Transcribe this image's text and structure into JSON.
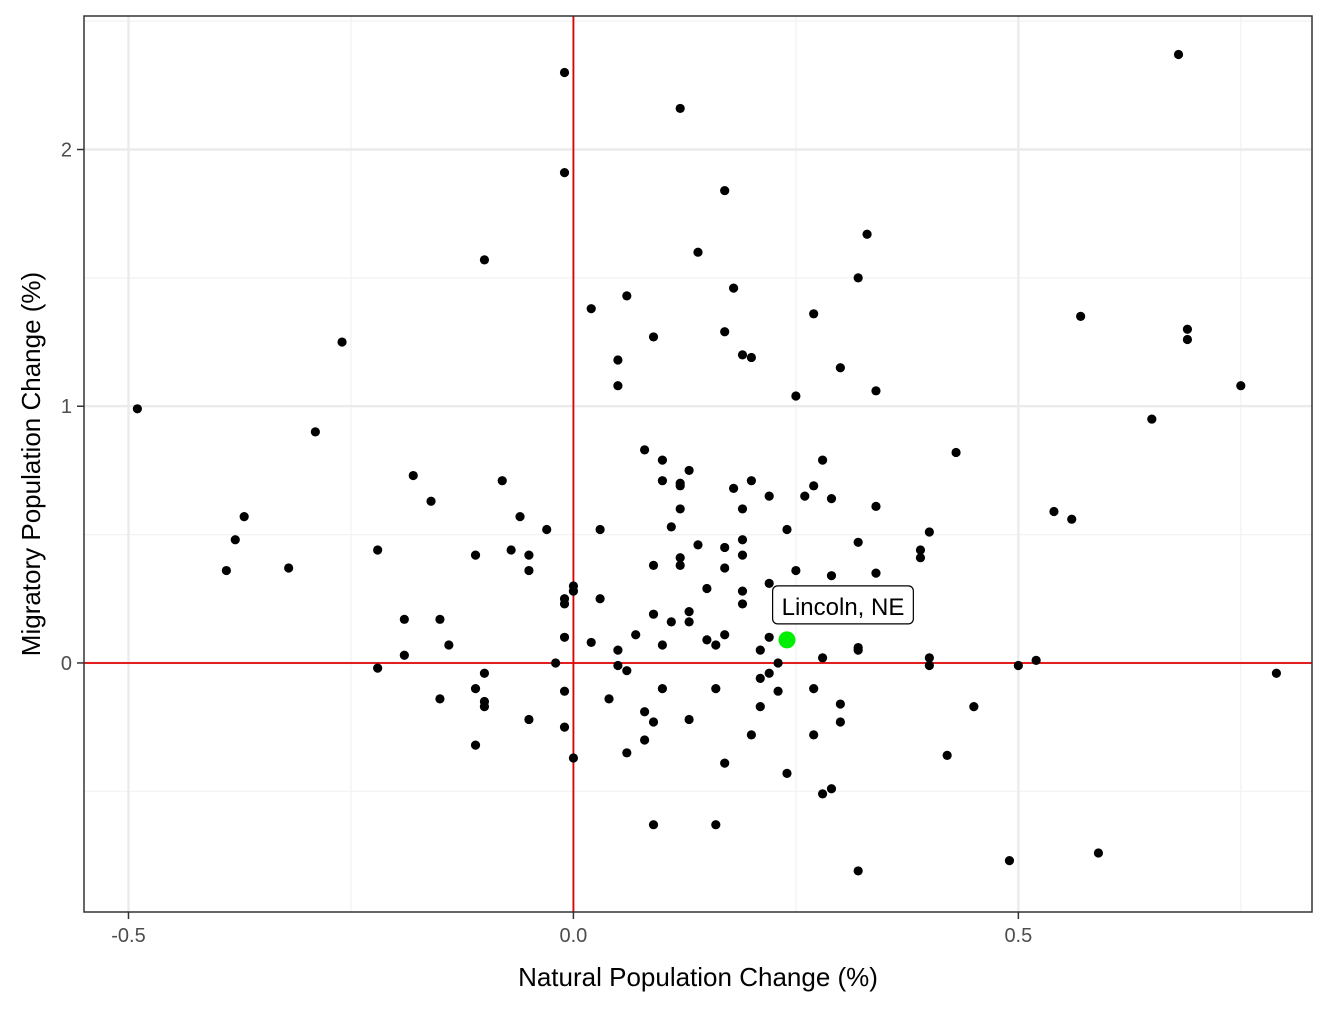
{
  "chart_data": {
    "type": "scatter",
    "xlabel": "Natural Population Change (%)",
    "ylabel": "Migratory Population Change (%)",
    "xlim": [
      -0.55,
      0.83
    ],
    "ylim": [
      -0.97,
      2.52
    ],
    "x_ticks": [
      {
        "value": -0.5,
        "label": "-0.5"
      },
      {
        "value": 0.0,
        "label": "0.0"
      },
      {
        "value": 0.5,
        "label": "0.5"
      }
    ],
    "y_ticks": [
      {
        "value": 0,
        "label": "0"
      },
      {
        "value": 1,
        "label": "1"
      },
      {
        "value": 2,
        "label": "2"
      }
    ],
    "grid": true,
    "reference_lines": {
      "x": 0,
      "y": 0,
      "color": "#e00000"
    },
    "point_color": "#000000",
    "highlight": {
      "label": "Lincoln, NE",
      "x": 0.24,
      "y": 0.09,
      "color": "#00ee00"
    },
    "points": [
      [
        0.68,
        2.37
      ],
      [
        -0.01,
        2.3
      ],
      [
        0.12,
        2.16
      ],
      [
        -0.01,
        1.91
      ],
      [
        0.17,
        1.84
      ],
      [
        0.33,
        1.67
      ],
      [
        0.14,
        1.6
      ],
      [
        -0.1,
        1.57
      ],
      [
        0.32,
        1.5
      ],
      [
        0.18,
        1.46
      ],
      [
        0.06,
        1.43
      ],
      [
        0.02,
        1.38
      ],
      [
        0.27,
        1.36
      ],
      [
        0.57,
        1.35
      ],
      [
        0.69,
        1.3
      ],
      [
        0.17,
        1.29
      ],
      [
        0.09,
        1.27
      ],
      [
        0.69,
        1.26
      ],
      [
        -0.26,
        1.25
      ],
      [
        0.19,
        1.2
      ],
      [
        0.2,
        1.19
      ],
      [
        0.05,
        1.18
      ],
      [
        0.3,
        1.15
      ],
      [
        0.05,
        1.08
      ],
      [
        0.75,
        1.08
      ],
      [
        0.34,
        1.06
      ],
      [
        0.25,
        1.04
      ],
      [
        -0.49,
        0.99
      ],
      [
        0.65,
        0.95
      ],
      [
        -0.29,
        0.9
      ],
      [
        0.08,
        0.83
      ],
      [
        0.43,
        0.82
      ],
      [
        0.28,
        0.79
      ],
      [
        0.1,
        0.79
      ],
      [
        0.13,
        0.75
      ],
      [
        -0.18,
        0.73
      ],
      [
        -0.08,
        0.71
      ],
      [
        0.1,
        0.71
      ],
      [
        0.2,
        0.71
      ],
      [
        0.12,
        0.7
      ],
      [
        0.12,
        0.69
      ],
      [
        0.27,
        0.69
      ],
      [
        0.18,
        0.68
      ],
      [
        0.22,
        0.65
      ],
      [
        0.26,
        0.65
      ],
      [
        0.29,
        0.64
      ],
      [
        -0.16,
        0.63
      ],
      [
        0.12,
        0.6
      ],
      [
        0.19,
        0.6
      ],
      [
        0.34,
        0.61
      ],
      [
        0.54,
        0.59
      ],
      [
        -0.37,
        0.57
      ],
      [
        -0.06,
        0.57
      ],
      [
        0.56,
        0.56
      ],
      [
        0.11,
        0.53
      ],
      [
        0.03,
        0.52
      ],
      [
        -0.03,
        0.52
      ],
      [
        0.24,
        0.52
      ],
      [
        0.4,
        0.51
      ],
      [
        -0.38,
        0.48
      ],
      [
        0.19,
        0.48
      ],
      [
        0.32,
        0.47
      ],
      [
        0.14,
        0.46
      ],
      [
        0.17,
        0.45
      ],
      [
        -0.22,
        0.44
      ],
      [
        -0.07,
        0.44
      ],
      [
        0.39,
        0.44
      ],
      [
        -0.11,
        0.42
      ],
      [
        -0.05,
        0.42
      ],
      [
        0.19,
        0.42
      ],
      [
        0.39,
        0.41
      ],
      [
        0.12,
        0.41
      ],
      [
        0.09,
        0.38
      ],
      [
        0.12,
        0.38
      ],
      [
        -0.39,
        0.36
      ],
      [
        -0.32,
        0.37
      ],
      [
        -0.05,
        0.36
      ],
      [
        0.17,
        0.37
      ],
      [
        0.25,
        0.36
      ],
      [
        0.34,
        0.35
      ],
      [
        0.29,
        0.34
      ],
      [
        0.0,
        0.3
      ],
      [
        0.22,
        0.31
      ],
      [
        0.0,
        0.28
      ],
      [
        0.15,
        0.29
      ],
      [
        0.19,
        0.28
      ],
      [
        -0.01,
        0.25
      ],
      [
        0.03,
        0.25
      ],
      [
        -0.01,
        0.23
      ],
      [
        0.19,
        0.23
      ],
      [
        0.09,
        0.19
      ],
      [
        0.13,
        0.2
      ],
      [
        -0.19,
        0.17
      ],
      [
        -0.15,
        0.17
      ],
      [
        0.11,
        0.16
      ],
      [
        0.13,
        0.16
      ],
      [
        0.31,
        0.17
      ],
      [
        0.07,
        0.11
      ],
      [
        0.17,
        0.11
      ],
      [
        -0.01,
        0.1
      ],
      [
        0.15,
        0.09
      ],
      [
        0.22,
        0.1
      ],
      [
        0.02,
        0.08
      ],
      [
        -0.14,
        0.07
      ],
      [
        0.1,
        0.07
      ],
      [
        0.16,
        0.07
      ],
      [
        0.05,
        0.05
      ],
      [
        0.21,
        0.05
      ],
      [
        0.32,
        0.06
      ],
      [
        0.32,
        0.05
      ],
      [
        -0.19,
        0.03
      ],
      [
        0.28,
        0.02
      ],
      [
        0.4,
        0.02
      ],
      [
        0.52,
        0.01
      ],
      [
        -0.02,
        0.0
      ],
      [
        0.23,
        0.0
      ],
      [
        -0.22,
        -0.02
      ],
      [
        0.05,
        -0.01
      ],
      [
        0.4,
        -0.01
      ],
      [
        0.5,
        -0.01
      ],
      [
        0.06,
        -0.03
      ],
      [
        -0.1,
        -0.04
      ],
      [
        0.22,
        -0.04
      ],
      [
        0.79,
        -0.04
      ],
      [
        0.21,
        -0.06
      ],
      [
        -0.11,
        -0.1
      ],
      [
        0.1,
        -0.1
      ],
      [
        0.16,
        -0.1
      ],
      [
        0.27,
        -0.1
      ],
      [
        -0.01,
        -0.11
      ],
      [
        0.23,
        -0.11
      ],
      [
        -0.15,
        -0.14
      ],
      [
        0.04,
        -0.14
      ],
      [
        -0.1,
        -0.15
      ],
      [
        -0.1,
        -0.17
      ],
      [
        0.3,
        -0.16
      ],
      [
        0.21,
        -0.17
      ],
      [
        0.45,
        -0.17
      ],
      [
        0.08,
        -0.19
      ],
      [
        -0.05,
        -0.22
      ],
      [
        0.09,
        -0.23
      ],
      [
        0.13,
        -0.22
      ],
      [
        0.3,
        -0.23
      ],
      [
        -0.01,
        -0.25
      ],
      [
        0.2,
        -0.28
      ],
      [
        0.27,
        -0.28
      ],
      [
        0.08,
        -0.3
      ],
      [
        -0.11,
        -0.32
      ],
      [
        0.06,
        -0.35
      ],
      [
        -0.0,
        -0.37
      ],
      [
        0.42,
        -0.36
      ],
      [
        0.17,
        -0.39
      ],
      [
        0.24,
        -0.43
      ],
      [
        0.29,
        -0.49
      ],
      [
        0.28,
        -0.51
      ],
      [
        0.09,
        -0.63
      ],
      [
        0.16,
        -0.63
      ],
      [
        0.59,
        -0.74
      ],
      [
        0.49,
        -0.77
      ],
      [
        0.32,
        -0.81
      ]
    ]
  }
}
